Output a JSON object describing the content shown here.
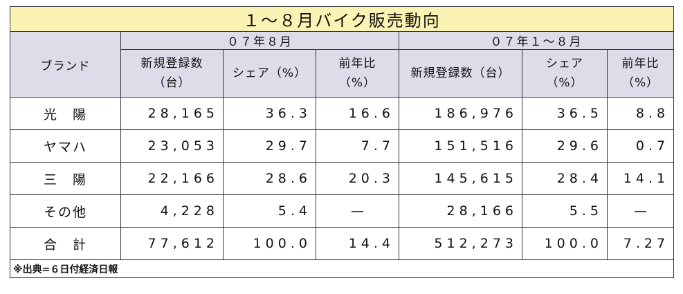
{
  "title": "１～８月バイク販売動向",
  "headers": {
    "brand": "ブランド",
    "group_month": "０７年８月",
    "group_ytd": "０７年１～８月",
    "m_reg_line1": "新規登録数",
    "m_reg_line2": "（台）",
    "m_share": "シェア（%）",
    "m_yoy_line1": "前年比",
    "m_yoy_line2": "（%）",
    "y_reg": "新規登録数（台）",
    "y_share_line1": "シェア",
    "y_share_line2": "（%）",
    "y_yoy_line1": "前年比",
    "y_yoy_line2": "（%）"
  },
  "rows": [
    {
      "brand": "光　陽",
      "m_reg": "28,165",
      "m_share": "36.3",
      "m_yoy": "16.6",
      "y_reg": "186,976",
      "y_share": "36.5",
      "y_yoy": "8.8"
    },
    {
      "brand": "ヤマハ",
      "m_reg": "23,053",
      "m_share": "29.7",
      "m_yoy": "7.7",
      "y_reg": "151,516",
      "y_share": "29.6",
      "y_yoy": "0.7"
    },
    {
      "brand": "三　陽",
      "m_reg": "22,166",
      "m_share": "28.6",
      "m_yoy": "20.3",
      "y_reg": "145,615",
      "y_share": "28.4",
      "y_yoy": "14.1"
    },
    {
      "brand": "その他",
      "m_reg": "4,228",
      "m_share": "5.4",
      "m_yoy": "—",
      "y_reg": "28,166",
      "y_share": "5.5",
      "y_yoy": "—"
    },
    {
      "brand": "合　計",
      "m_reg": "77,612",
      "m_share": "100.0",
      "m_yoy": "14.4",
      "y_reg": "512,273",
      "y_share": "100.0",
      "y_yoy": "7.27"
    }
  ],
  "footnote": "※出典=６日付経済日報"
}
